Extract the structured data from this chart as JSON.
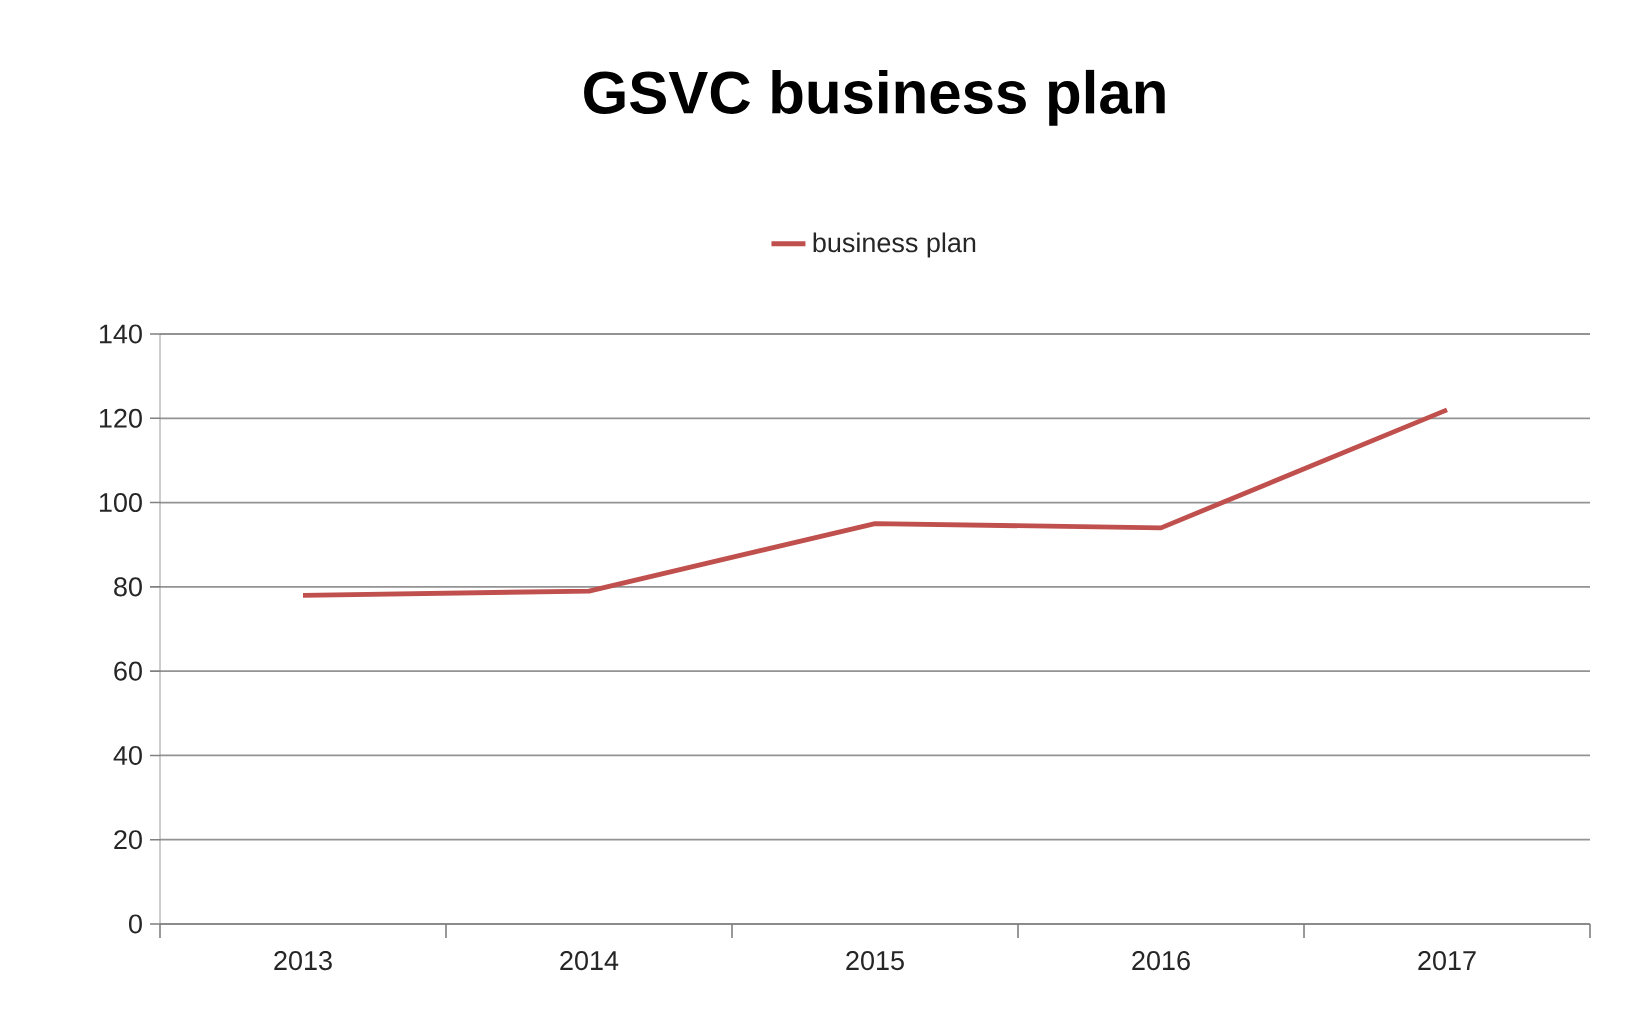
{
  "chart_data": {
    "type": "line",
    "title": "GSVC business plan",
    "categories": [
      "2013",
      "2014",
      "2015",
      "2016",
      "2017"
    ],
    "series": [
      {
        "name": "business plan",
        "color": "#c0504d",
        "values": [
          78,
          79,
          95,
          94,
          122
        ]
      }
    ],
    "ylim": [
      0,
      140
    ],
    "yticks": [
      0,
      20,
      40,
      60,
      80,
      100,
      120,
      140
    ],
    "grid": "y",
    "legend": "top",
    "marker": "none",
    "line_style": "solid"
  }
}
